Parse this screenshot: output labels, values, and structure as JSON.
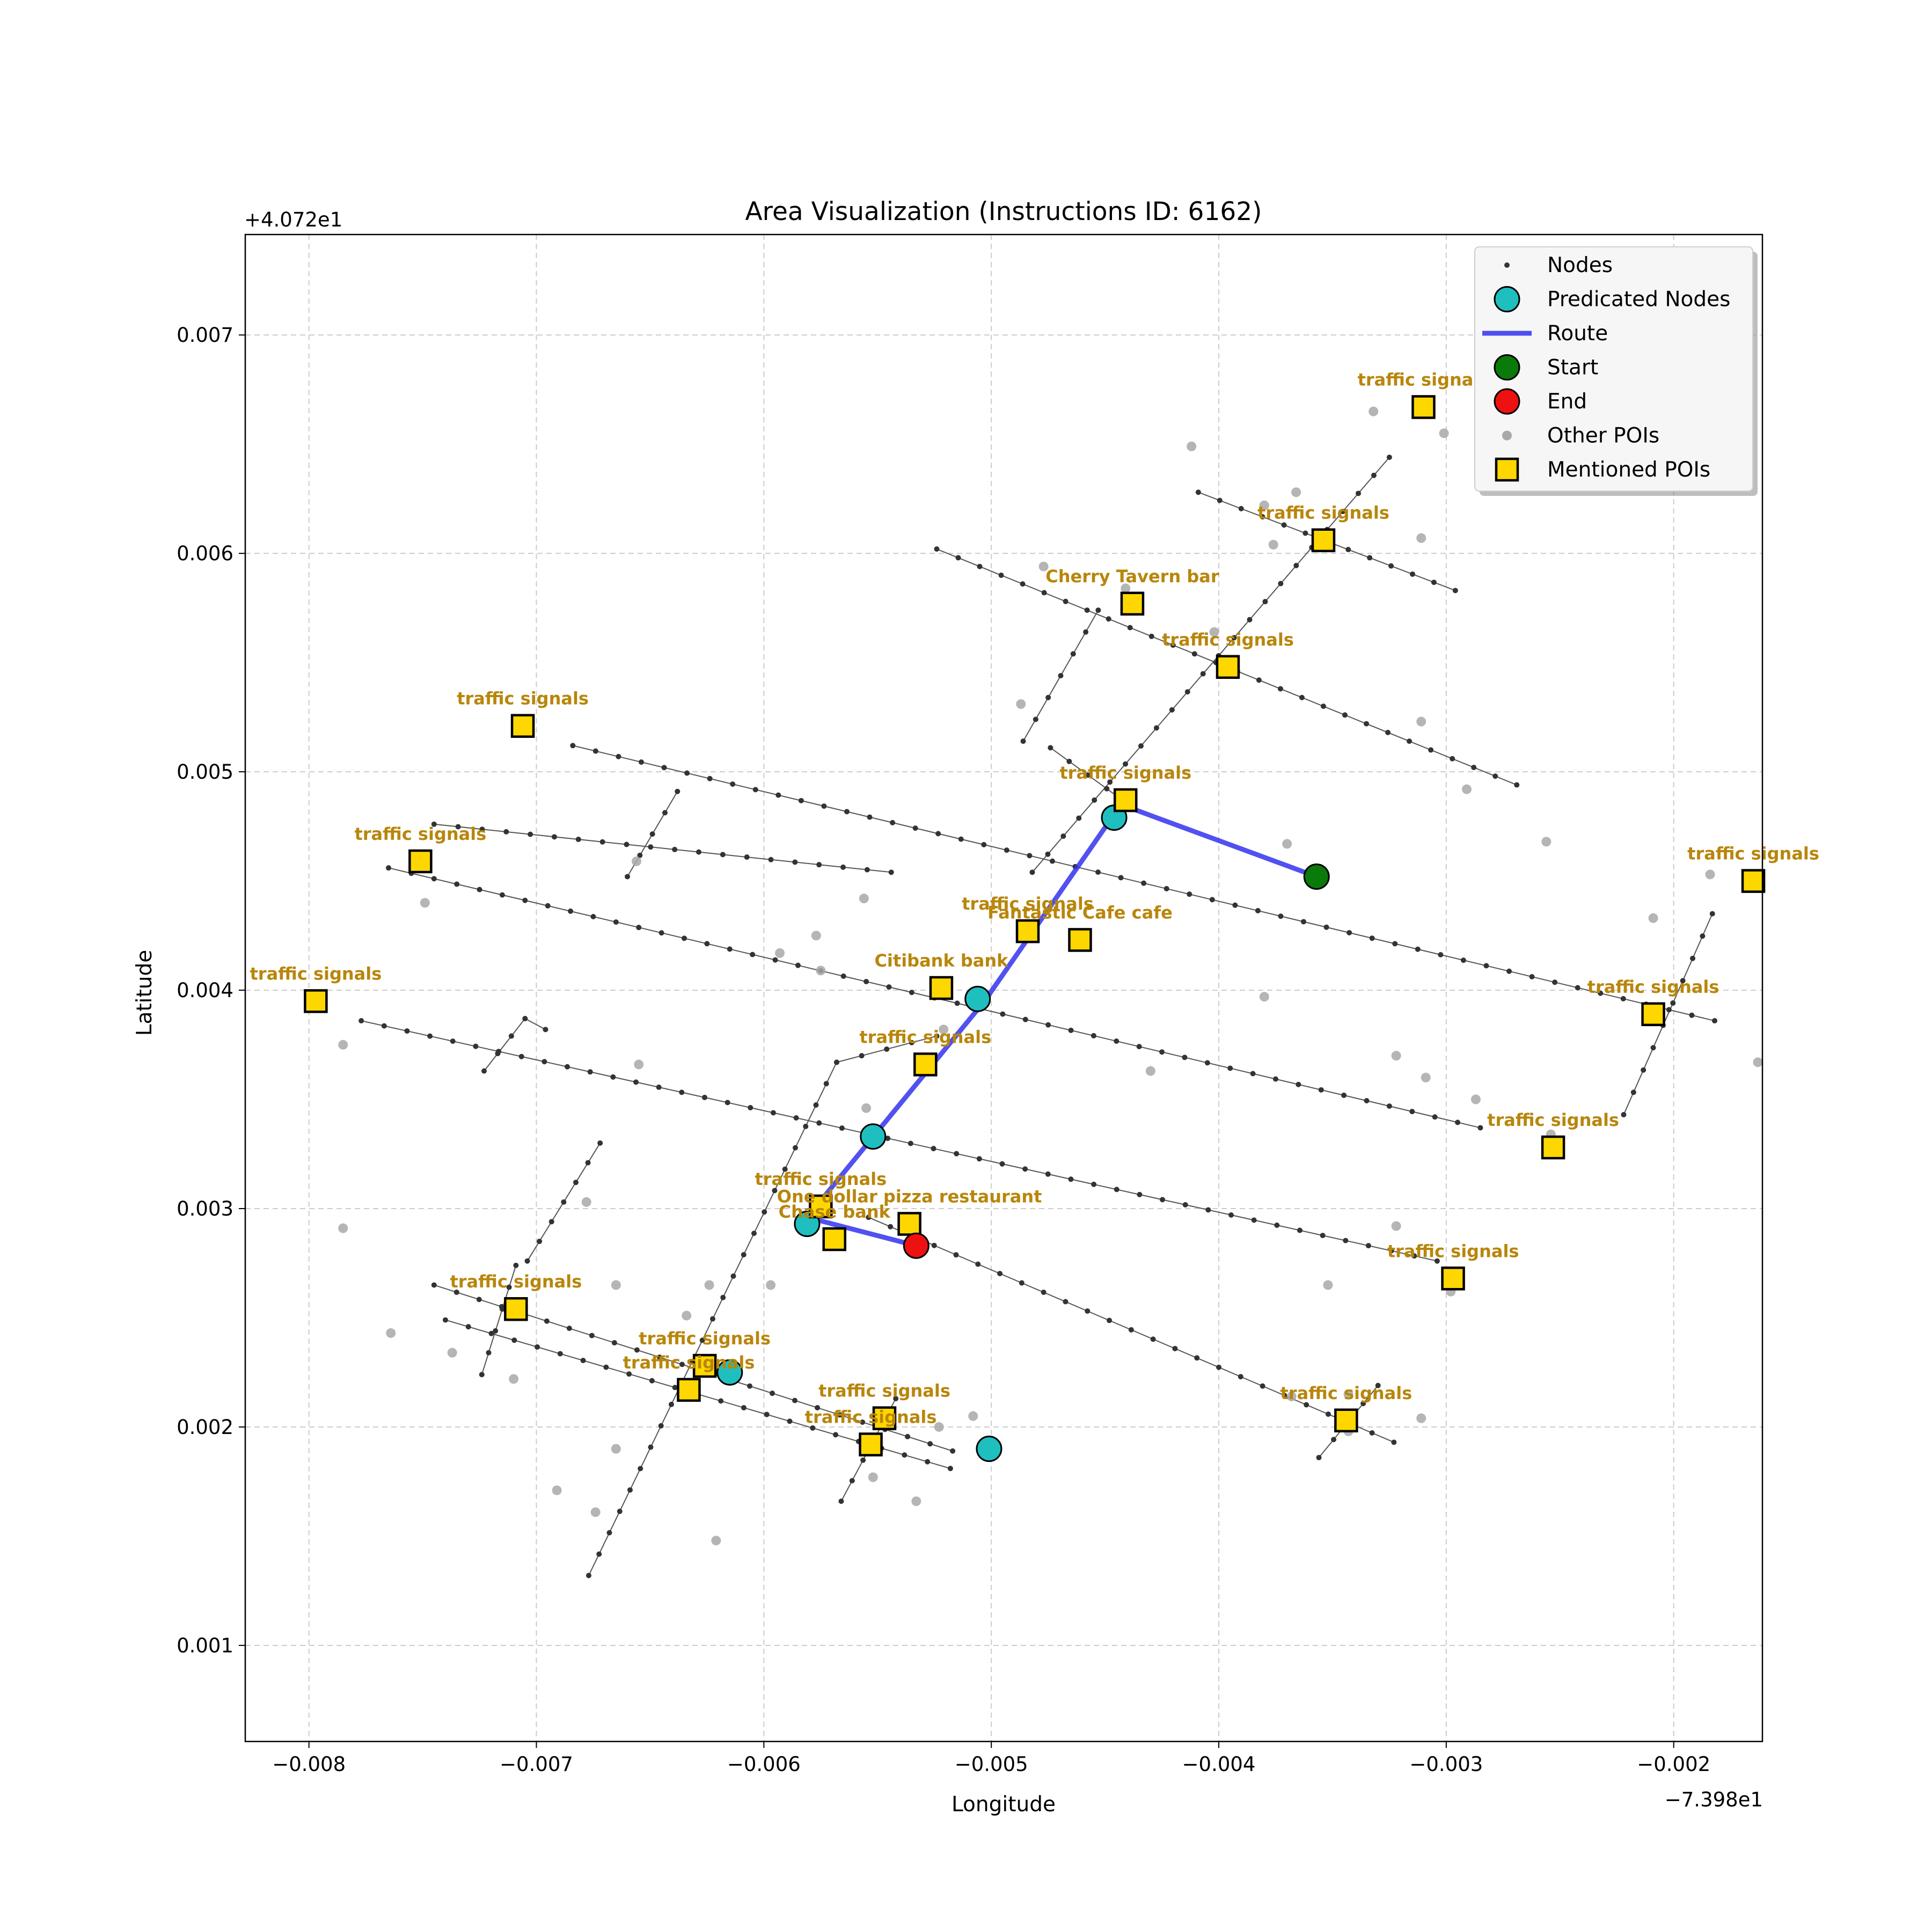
{
  "chart_data": {
    "type": "map",
    "title": "Area Visualization (Instructions ID: 6162)",
    "xlabel": "Longitude",
    "ylabel": "Latitude",
    "x_offset_label": "−7.398e1",
    "y_offset_label": "+4.072e1",
    "xlim": [
      -0.00828,
      -0.00161
    ],
    "ylim": [
      0.00056,
      0.00746
    ],
    "xticks": [
      {
        "value": -0.008,
        "label": "−0.008"
      },
      {
        "value": -0.007,
        "label": "−0.007"
      },
      {
        "value": -0.006,
        "label": "−0.006"
      },
      {
        "value": -0.005,
        "label": "−0.005"
      },
      {
        "value": -0.004,
        "label": "−0.004"
      },
      {
        "value": -0.003,
        "label": "−0.003"
      },
      {
        "value": -0.002,
        "label": "−0.002"
      }
    ],
    "yticks": [
      {
        "value": 0.001,
        "label": "0.001"
      },
      {
        "value": 0.002,
        "label": "0.002"
      },
      {
        "value": 0.003,
        "label": "0.003"
      },
      {
        "value": 0.004,
        "label": "0.004"
      },
      {
        "value": 0.005,
        "label": "0.005"
      },
      {
        "value": 0.006,
        "label": "0.006"
      },
      {
        "value": 0.007,
        "label": "0.007"
      }
    ],
    "grid": true,
    "legend_position": "top-right",
    "legend": [
      {
        "key": "nodes",
        "label": "Nodes"
      },
      {
        "key": "predicated",
        "label": "Predicated Nodes"
      },
      {
        "key": "route",
        "label": "Route"
      },
      {
        "key": "start",
        "label": "Start"
      },
      {
        "key": "end",
        "label": "End"
      },
      {
        "key": "other",
        "label": "Other POIs"
      },
      {
        "key": "mentioned",
        "label": "Mentioned POIs"
      }
    ],
    "colors": {
      "nodes": "#333333",
      "streets": "#555555",
      "predicated": "#1fbfbf",
      "route": "#3333ee",
      "start": "#0a7a0a",
      "end": "#ee1111",
      "other": "#a8a8a8",
      "mentioned": "#ffd700",
      "label": "#b8860b",
      "grid": "#cccccc"
    },
    "streets": [
      [
        [
          -0.00684,
          0.00512
        ],
        [
          -0.00182,
          0.00386
        ]
      ],
      [
        [
          -0.00544,
          0.00454
        ],
        [
          -0.00745,
          0.00476
        ]
      ],
      [
        [
          -0.00765,
          0.00456
        ],
        [
          -0.00285,
          0.00337
        ]
      ],
      [
        [
          -0.00777,
          0.00386
        ],
        [
          -0.00304,
          0.00276
        ]
      ],
      [
        [
          -0.00745,
          0.00265
        ],
        [
          -0.00517,
          0.00189
        ]
      ],
      [
        [
          -0.0074,
          0.00249
        ],
        [
          -0.00518,
          0.00181
        ]
      ],
      [
        [
          -0.00524,
          0.00602
        ],
        [
          -0.00269,
          0.00494
        ]
      ],
      [
        [
          -0.00409,
          0.00628
        ],
        [
          -0.00296,
          0.00583
        ]
      ],
      [
        [
          -0.00474,
          0.00511
        ],
        [
          -0.00441,
          0.00486
        ]
      ],
      [
        [
          -0.00554,
          0.00296
        ],
        [
          -0.00323,
          0.00193
        ]
      ],
      [
        [
          -0.00677,
          0.00132
        ],
        [
          -0.00568,
          0.00367
        ]
      ],
      [
        [
          -0.00568,
          0.00367
        ],
        [
          -0.00524,
          0.00379
        ]
      ],
      [
        [
          -0.00566,
          0.00166
        ],
        [
          -0.00542,
          0.00213
        ]
      ],
      [
        [
          -0.00482,
          0.00454
        ],
        [
          -0.00325,
          0.00644
        ]
      ],
      [
        [
          -0.00486,
          0.00514
        ],
        [
          -0.00453,
          0.00574
        ]
      ],
      [
        [
          -0.0066,
          0.00452
        ],
        [
          -0.00638,
          0.00491
        ]
      ],
      [
        [
          -0.00724,
          0.00224
        ],
        [
          -0.00709,
          0.00274
        ]
      ],
      [
        [
          -0.00704,
          0.00276
        ],
        [
          -0.00672,
          0.0033
        ]
      ],
      [
        [
          -0.00723,
          0.00363
        ],
        [
          -0.00705,
          0.00387
        ]
      ],
      [
        [
          -0.00705,
          0.00387
        ],
        [
          -0.00696,
          0.00382
        ]
      ],
      [
        [
          -0.00356,
          0.00186
        ],
        [
          -0.0033,
          0.00219
        ]
      ],
      [
        [
          -0.00222,
          0.00343
        ],
        [
          -0.00183,
          0.00435
        ]
      ]
    ],
    "route": [
      [
        -0.00357,
        0.00452
      ],
      [
        -0.00443,
        0.00485
      ],
      [
        -0.00503,
        0.00395
      ],
      [
        -0.00581,
        0.00296
      ],
      [
        -0.00533,
        0.00283
      ]
    ],
    "predicated_nodes": [
      [
        -0.00446,
        0.00479
      ],
      [
        -0.00506,
        0.00396
      ],
      [
        -0.00552,
        0.00333
      ],
      [
        -0.00581,
        0.00293
      ],
      [
        -0.00615,
        0.00225
      ],
      [
        -0.00501,
        0.0019
      ]
    ],
    "start": [
      -0.00357,
      0.00452
    ],
    "end": [
      -0.00533,
      0.00283
    ],
    "other_pois": [
      [
        -0.00412,
        0.00649
      ],
      [
        -0.0038,
        0.00622
      ],
      [
        -0.00366,
        0.00628
      ],
      [
        -0.00376,
        0.00604
      ],
      [
        -0.00311,
        0.00607
      ],
      [
        -0.00301,
        0.00655
      ],
      [
        -0.00441,
        0.00584
      ],
      [
        -0.00477,
        0.00594
      ],
      [
        -0.00402,
        0.00564
      ],
      [
        -0.00487,
        0.00531
      ],
      [
        -0.00311,
        0.00523
      ],
      [
        -0.00291,
        0.00492
      ],
      [
        -0.00256,
        0.00468
      ],
      [
        -0.0037,
        0.00467
      ],
      [
        -0.00184,
        0.00453
      ],
      [
        -0.00209,
        0.00433
      ],
      [
        -0.00163,
        0.00367
      ],
      [
        -0.0038,
        0.00397
      ],
      [
        -0.00322,
        0.0037
      ],
      [
        -0.00309,
        0.0036
      ],
      [
        -0.00287,
        0.0035
      ],
      [
        -0.00254,
        0.00334
      ],
      [
        -0.0043,
        0.00363
      ],
      [
        -0.00521,
        0.00382
      ],
      [
        -0.00555,
        0.00346
      ],
      [
        -0.00575,
        0.00409
      ],
      [
        -0.00577,
        0.00425
      ],
      [
        -0.00593,
        0.00417
      ],
      [
        -0.00556,
        0.00442
      ],
      [
        -0.00656,
        0.00459
      ],
      [
        -0.00749,
        0.0044
      ],
      [
        -0.00785,
        0.00375
      ],
      [
        -0.00655,
        0.00366
      ],
      [
        -0.00785,
        0.00291
      ],
      [
        -0.00678,
        0.00303
      ],
      [
        -0.00665,
        0.00265
      ],
      [
        -0.00624,
        0.00265
      ],
      [
        -0.00634,
        0.00251
      ],
      [
        -0.00597,
        0.00265
      ],
      [
        -0.00764,
        0.00243
      ],
      [
        -0.00737,
        0.00234
      ],
      [
        -0.0071,
        0.00222
      ],
      [
        -0.00665,
        0.0019
      ],
      [
        -0.00691,
        0.00171
      ],
      [
        -0.00674,
        0.00161
      ],
      [
        -0.00621,
        0.00148
      ],
      [
        -0.00523,
        0.002
      ],
      [
        -0.00508,
        0.00205
      ],
      [
        -0.00552,
        0.00177
      ],
      [
        -0.00533,
        0.00166
      ],
      [
        -0.00322,
        0.00292
      ],
      [
        -0.00298,
        0.00262
      ],
      [
        -0.00352,
        0.00265
      ],
      [
        -0.00368,
        0.00214
      ],
      [
        -0.00343,
        0.00215
      ],
      [
        -0.00343,
        0.00198
      ],
      [
        -0.00311,
        0.00204
      ],
      [
        -0.00332,
        0.00665
      ]
    ],
    "mentioned_pois": [
      {
        "name": "traffic signals",
        "x": -0.0031,
        "y": 0.00667
      },
      {
        "name": "traffic signals",
        "x": -0.00354,
        "y": 0.00606
      },
      {
        "name": "Cherry Tavern bar",
        "x": -0.00438,
        "y": 0.00577
      },
      {
        "name": "traffic signals",
        "x": -0.00396,
        "y": 0.00548
      },
      {
        "name": "traffic signals",
        "x": -0.00706,
        "y": 0.00521
      },
      {
        "name": "traffic signals",
        "x": -0.00441,
        "y": 0.00487
      },
      {
        "name": "traffic signals",
        "x": -0.00751,
        "y": 0.00459
      },
      {
        "name": "traffic signals",
        "x": -0.00165,
        "y": 0.0045
      },
      {
        "name": "traffic signals",
        "x": -0.00484,
        "y": 0.00427
      },
      {
        "name": "Fantastic Cafe cafe",
        "x": -0.00461,
        "y": 0.00423
      },
      {
        "name": "Citibank bank",
        "x": -0.00522,
        "y": 0.00401
      },
      {
        "name": "traffic signals",
        "x": -0.00797,
        "y": 0.00395
      },
      {
        "name": "traffic signals",
        "x": -0.00209,
        "y": 0.00389
      },
      {
        "name": "traffic signals",
        "x": -0.00529,
        "y": 0.00366
      },
      {
        "name": "traffic signals",
        "x": -0.00253,
        "y": 0.00328
      },
      {
        "name": "traffic signals",
        "x": -0.00575,
        "y": 0.00301
      },
      {
        "name": "One dollar pizza restaurant",
        "x": -0.00536,
        "y": 0.00293
      },
      {
        "name": "Chase bank",
        "x": -0.00569,
        "y": 0.00286
      },
      {
        "name": "traffic signals",
        "x": -0.00297,
        "y": 0.00268
      },
      {
        "name": "traffic signals",
        "x": -0.00709,
        "y": 0.00254
      },
      {
        "name": "traffic signals",
        "x": -0.00626,
        "y": 0.00228
      },
      {
        "name": "traffic signals",
        "x": -0.00633,
        "y": 0.00217
      },
      {
        "name": "traffic signals",
        "x": -0.00547,
        "y": 0.00204
      },
      {
        "name": "traffic signals",
        "x": -0.00553,
        "y": 0.00192
      },
      {
        "name": "traffic signals",
        "x": -0.00344,
        "y": 0.00203
      }
    ]
  }
}
